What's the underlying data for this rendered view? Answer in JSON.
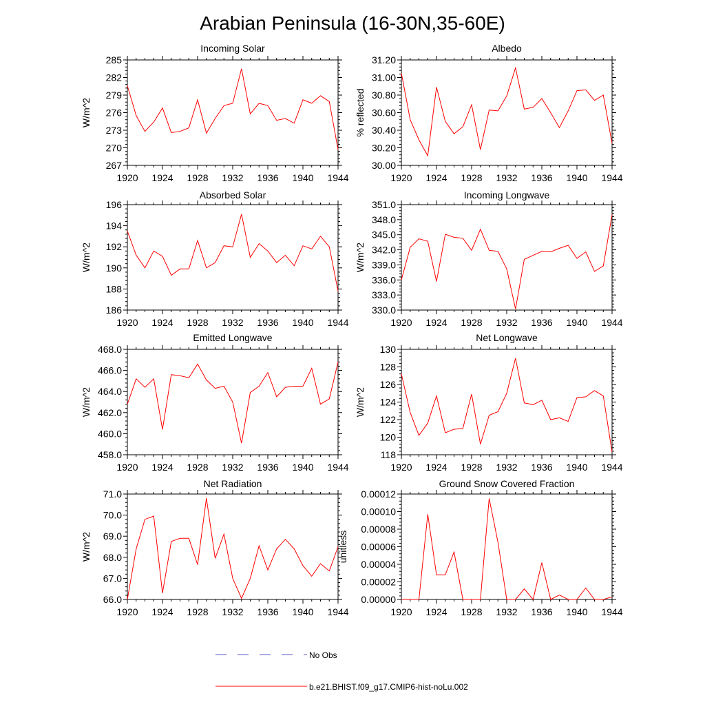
{
  "figure": {
    "title": "Arabian Peninsula (16-30N,35-60E)"
  },
  "colors": {
    "model": "#ff0000",
    "obs": "#5555cc"
  },
  "legend": {
    "obs_label": "No Obs",
    "model_label": "b.e21.BHIST.f09_g17.CMIP6-hist-noLu.002"
  },
  "chart_data": [
    {
      "type": "line",
      "title": "Incoming Solar",
      "ylabel": "W/m^2",
      "xlim": [
        1920,
        1944
      ],
      "ylim": [
        267,
        285
      ],
      "yticks": [
        "267",
        "270",
        "273",
        "276",
        "279",
        "282",
        "285"
      ],
      "xticks": [
        "1920",
        "1924",
        "1928",
        "1932",
        "1936",
        "1940",
        "1944"
      ],
      "series": [
        {
          "name": "b.e21.BHIST.f09_g17.CMIP6-hist-noLu.002",
          "x": [
            1920,
            1921,
            1922,
            1923,
            1924,
            1925,
            1926,
            1927,
            1928,
            1929,
            1930,
            1931,
            1932,
            1933,
            1934,
            1935,
            1936,
            1937,
            1938,
            1939,
            1940,
            1941,
            1942,
            1943,
            1944
          ],
          "values": [
            280.6,
            275.5,
            272.8,
            274.4,
            276.8,
            272.6,
            272.8,
            273.4,
            278.2,
            272.5,
            275.0,
            277.2,
            277.6,
            283.5,
            275.8,
            277.6,
            277.2,
            274.7,
            275.0,
            274.2,
            278.2,
            277.6,
            278.9,
            277.9,
            269.7
          ]
        }
      ]
    },
    {
      "type": "line",
      "title": "Albedo",
      "ylabel": "% reflected",
      "xlim": [
        1920,
        1944
      ],
      "ylim": [
        30.0,
        31.2
      ],
      "yticks": [
        "30.00",
        "30.20",
        "30.40",
        "30.60",
        "30.80",
        "31.00",
        "31.20"
      ],
      "xticks": [
        "1920",
        "1924",
        "1928",
        "1932",
        "1936",
        "1940",
        "1944"
      ],
      "series": [
        {
          "name": "b.e21.BHIST.f09_g17.CMIP6-hist-noLu.002",
          "x": [
            1920,
            1921,
            1922,
            1923,
            1924,
            1925,
            1926,
            1927,
            1928,
            1929,
            1930,
            1931,
            1932,
            1933,
            1934,
            1935,
            1936,
            1937,
            1938,
            1939,
            1940,
            1941,
            1942,
            1943,
            1944
          ],
          "values": [
            31.05,
            30.52,
            30.29,
            30.11,
            30.89,
            30.5,
            30.36,
            30.44,
            30.69,
            30.18,
            30.63,
            30.62,
            30.79,
            31.11,
            30.64,
            30.66,
            30.76,
            30.6,
            30.43,
            30.62,
            30.85,
            30.86,
            30.74,
            30.8,
            30.25
          ]
        }
      ]
    },
    {
      "type": "line",
      "title": "Absorbed Solar",
      "ylabel": "W/m^2",
      "xlim": [
        1920,
        1944
      ],
      "ylim": [
        186,
        196
      ],
      "yticks": [
        "186",
        "188",
        "190",
        "192",
        "194",
        "196"
      ],
      "xticks": [
        "1920",
        "1924",
        "1928",
        "1932",
        "1936",
        "1940",
        "1944"
      ],
      "series": [
        {
          "name": "b.e21.BHIST.f09_g17.CMIP6-hist-noLu.002",
          "x": [
            1920,
            1921,
            1922,
            1923,
            1924,
            1925,
            1926,
            1927,
            1928,
            1929,
            1930,
            1931,
            1932,
            1933,
            1934,
            1935,
            1936,
            1937,
            1938,
            1939,
            1940,
            1941,
            1942,
            1943,
            1944
          ],
          "values": [
            193.5,
            191.2,
            190.0,
            191.6,
            191.1,
            189.3,
            189.9,
            189.9,
            192.6,
            190.0,
            190.5,
            192.1,
            192.0,
            195.1,
            191.0,
            192.3,
            191.6,
            190.5,
            191.2,
            190.2,
            192.1,
            191.8,
            193.0,
            192.0,
            187.8
          ]
        }
      ]
    },
    {
      "type": "line",
      "title": "Incoming Longwave",
      "ylabel": "W/m^2",
      "xlim": [
        1920,
        1944
      ],
      "ylim": [
        330.0,
        351.0
      ],
      "yticks": [
        "330.0",
        "333.0",
        "336.0",
        "339.0",
        "342.0",
        "345.0",
        "348.0",
        "351.0"
      ],
      "xticks": [
        "1920",
        "1924",
        "1928",
        "1932",
        "1936",
        "1940",
        "1944"
      ],
      "series": [
        {
          "name": "b.e21.BHIST.f09_g17.CMIP6-hist-noLu.002",
          "x": [
            1920,
            1921,
            1922,
            1923,
            1924,
            1925,
            1926,
            1927,
            1928,
            1929,
            1930,
            1931,
            1932,
            1933,
            1934,
            1935,
            1936,
            1937,
            1938,
            1939,
            1940,
            1941,
            1942,
            1943,
            1944
          ],
          "values": [
            336.0,
            342.5,
            344.2,
            343.7,
            335.7,
            345.1,
            344.5,
            344.3,
            341.9,
            346.1,
            341.9,
            341.7,
            338.2,
            330.2,
            340.1,
            340.9,
            341.7,
            341.6,
            342.3,
            342.9,
            340.3,
            341.6,
            337.7,
            338.8,
            349.0
          ]
        }
      ]
    },
    {
      "type": "line",
      "title": "Emitted Longwave",
      "ylabel": "W/m^2",
      "xlim": [
        1920,
        1944
      ],
      "ylim": [
        458.0,
        468.0
      ],
      "yticks": [
        "458.0",
        "460.0",
        "462.0",
        "464.0",
        "466.0",
        "468.0"
      ],
      "xticks": [
        "1920",
        "1924",
        "1928",
        "1932",
        "1936",
        "1940",
        "1944"
      ],
      "series": [
        {
          "name": "b.e21.BHIST.f09_g17.CMIP6-hist-noLu.002",
          "x": [
            1920,
            1921,
            1922,
            1923,
            1924,
            1925,
            1926,
            1927,
            1928,
            1929,
            1930,
            1931,
            1932,
            1933,
            1934,
            1935,
            1936,
            1937,
            1938,
            1939,
            1940,
            1941,
            1942,
            1943,
            1944
          ],
          "values": [
            462.8,
            465.2,
            464.4,
            465.2,
            460.4,
            465.6,
            465.5,
            465.3,
            466.6,
            465.1,
            464.3,
            464.5,
            463.0,
            459.1,
            463.9,
            464.5,
            465.8,
            463.5,
            464.4,
            464.5,
            464.5,
            466.2,
            462.8,
            463.3,
            466.8
          ]
        }
      ]
    },
    {
      "type": "line",
      "title": "Net Longwave",
      "ylabel": "W/m^2",
      "xlim": [
        1920,
        1944
      ],
      "ylim": [
        118,
        130
      ],
      "yticks": [
        "118",
        "120",
        "122",
        "124",
        "126",
        "128",
        "130"
      ],
      "xticks": [
        "1920",
        "1924",
        "1928",
        "1932",
        "1936",
        "1940",
        "1944"
      ],
      "series": [
        {
          "name": "b.e21.BHIST.f09_g17.CMIP6-hist-noLu.002",
          "x": [
            1920,
            1921,
            1922,
            1923,
            1924,
            1925,
            1926,
            1927,
            1928,
            1929,
            1930,
            1931,
            1932,
            1933,
            1934,
            1935,
            1936,
            1937,
            1938,
            1939,
            1940,
            1941,
            1942,
            1943,
            1944
          ],
          "values": [
            127.2,
            122.8,
            120.2,
            121.6,
            124.7,
            120.5,
            120.9,
            121.0,
            124.9,
            119.2,
            122.5,
            122.9,
            125.0,
            129.0,
            123.9,
            123.7,
            124.2,
            122.0,
            122.2,
            121.8,
            124.5,
            124.6,
            125.3,
            124.7,
            118.3
          ]
        }
      ]
    },
    {
      "type": "line",
      "title": "Net Radiation",
      "ylabel": "W/m^2",
      "xlim": [
        1920,
        1944
      ],
      "ylim": [
        66.0,
        71.0
      ],
      "yticks": [
        "66.0",
        "67.0",
        "68.0",
        "69.0",
        "70.0",
        "71.0"
      ],
      "xticks": [
        "1920",
        "1924",
        "1928",
        "1932",
        "1936",
        "1940",
        "1944"
      ],
      "series": [
        {
          "name": "b.e21.BHIST.f09_g17.CMIP6-hist-noLu.002",
          "x": [
            1920,
            1921,
            1922,
            1923,
            1924,
            1925,
            1926,
            1927,
            1928,
            1929,
            1930,
            1931,
            1932,
            1933,
            1934,
            1935,
            1936,
            1937,
            1938,
            1939,
            1940,
            1941,
            1942,
            1943,
            1944
          ],
          "values": [
            66.0,
            68.4,
            69.8,
            69.95,
            66.3,
            68.75,
            68.9,
            68.9,
            67.65,
            70.8,
            67.95,
            69.1,
            67.0,
            66.05,
            67.0,
            68.55,
            67.4,
            68.4,
            68.85,
            68.4,
            67.6,
            67.1,
            67.7,
            67.35,
            68.5
          ]
        }
      ]
    },
    {
      "type": "line",
      "title": "Ground Snow Covered Fraction",
      "ylabel": "unitless",
      "xlim": [
        1920,
        1944
      ],
      "ylim": [
        0,
        0.00012
      ],
      "yticks": [
        "0.00000",
        "0.00002",
        "0.00004",
        "0.00006",
        "0.00008",
        "0.00010",
        "0.00012"
      ],
      "xticks": [
        "1920",
        "1924",
        "1928",
        "1932",
        "1936",
        "1940",
        "1944"
      ],
      "series": [
        {
          "name": "b.e21.BHIST.f09_g17.CMIP6-hist-noLu.002",
          "x": [
            1920,
            1921,
            1922,
            1923,
            1924,
            1925,
            1926,
            1927,
            1928,
            1929,
            1930,
            1931,
            1932,
            1933,
            1934,
            1935,
            1936,
            1937,
            1938,
            1939,
            1940,
            1941,
            1942,
            1943,
            1944
          ],
          "values": [
            0,
            0,
            0,
            9.7e-05,
            2.8e-05,
            2.8e-05,
            5.4e-05,
            0,
            0,
            0,
            0.000115,
            6.5e-05,
            0,
            0,
            1.2e-05,
            0,
            4.2e-05,
            0,
            5e-06,
            0,
            0,
            1.3e-05,
            0,
            0,
            3e-06
          ]
        }
      ]
    }
  ]
}
